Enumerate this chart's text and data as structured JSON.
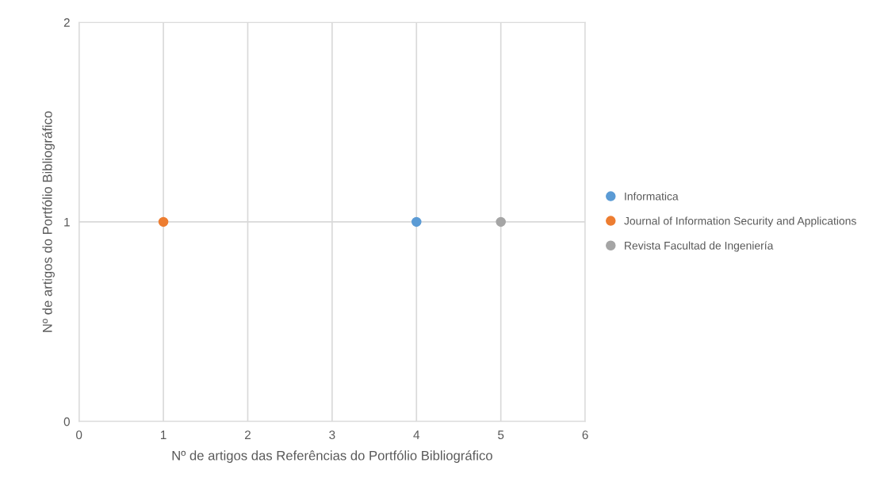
{
  "chart_data": {
    "type": "scatter",
    "xlabel": "Nº de artigos das Referências do Portfólio Bibliográfico",
    "ylabel": "Nº de artigos do Portfólio Bibliográfico",
    "series": [
      {
        "name": "Informatica",
        "color": "#5b9bd5",
        "x": [
          4
        ],
        "values": [
          1
        ]
      },
      {
        "name": "Journal of Information Security and Applications",
        "color": "#ed7d31",
        "x": [
          1
        ],
        "values": [
          1
        ]
      },
      {
        "name": "Revista Facultad de Ingeniería",
        "color": "#a5a5a5",
        "x": [
          5
        ],
        "values": [
          1
        ]
      }
    ],
    "xlim": [
      0,
      6
    ],
    "xticks": [
      0,
      1,
      2,
      3,
      4,
      5,
      6
    ],
    "ylim": [
      0,
      2
    ],
    "yticks": [
      0,
      1,
      2
    ],
    "grid": true,
    "legend": "right",
    "marker": "circle"
  }
}
